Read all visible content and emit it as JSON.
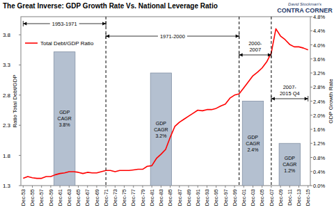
{
  "chart_data": {
    "type": "line",
    "title": "The Great Inverse: GDP Growth Rate Vs. National Leverage Ratio",
    "logo": [
      "David Stockman's",
      "CONTRA CORNER"
    ],
    "ylabel": "Ratio Total Debt/GDP",
    "y2label": "GDP Growth Rate",
    "categories": [
      "Dec-53",
      null,
      "Dec-55",
      null,
      "Dec-57",
      null,
      "Dec-59",
      null,
      "Dec-61",
      null,
      "Dec-63",
      null,
      "Dec-65",
      null,
      "Dec-67",
      null,
      "Dec-69",
      null,
      "Dec-71",
      null,
      "Dec-73",
      null,
      "Dec-75",
      null,
      "Dec-77",
      null,
      "Dec-79",
      null,
      "Dec-81",
      null,
      "Dec-83",
      null,
      "Dec-85",
      null,
      "Dec-87",
      null,
      "Dec-89",
      null,
      "Dec-91",
      null,
      "Dec-93",
      null,
      "Dec-95",
      null,
      "Dec-97",
      null,
      "Dec-99",
      null,
      "Dec-01",
      null,
      "Dec-03",
      null,
      "Dec-05",
      null,
      "Dec-07",
      null,
      "Dec-09",
      null,
      "Dec-11",
      null,
      "Dec-13",
      null,
      "Dec-15"
    ],
    "series": [
      {
        "name": "Total Debt/GDP Ratio",
        "type": "line",
        "color": "#ff0000",
        "values": [
          1.42,
          1.45,
          1.43,
          1.42,
          1.42,
          1.45,
          1.45,
          1.48,
          1.5,
          1.51,
          1.53,
          1.53,
          1.52,
          1.5,
          1.52,
          1.51,
          1.51,
          1.53,
          1.55,
          1.55,
          1.53,
          1.55,
          1.55,
          1.55,
          1.56,
          1.57,
          1.57,
          1.62,
          1.63,
          1.75,
          1.82,
          1.9,
          2.1,
          2.28,
          2.35,
          2.4,
          2.45,
          2.5,
          2.55,
          2.54,
          2.56,
          2.56,
          2.58,
          2.62,
          2.65,
          2.75,
          2.8,
          2.82,
          2.92,
          3.02,
          3.12,
          3.18,
          3.25,
          3.35,
          3.5,
          3.9,
          3.78,
          3.72,
          3.64,
          3.6,
          3.6,
          3.58,
          3.55
        ]
      },
      {
        "name": "GDP CAGR",
        "type": "bar",
        "axis": "y2",
        "color": "#b4c0d0",
        "values": [
          null,
          null,
          null,
          null,
          null,
          null,
          null,
          null,
          null,
          3.8,
          null,
          null,
          null,
          null,
          null,
          null,
          null,
          null,
          null,
          null,
          null,
          null,
          null,
          null,
          null,
          null,
          null,
          null,
          null,
          null,
          3.2,
          null,
          null,
          null,
          null,
          null,
          null,
          null,
          null,
          null,
          null,
          null,
          null,
          null,
          null,
          null,
          null,
          null,
          null,
          null,
          2.4,
          null,
          null,
          null,
          null,
          null,
          null,
          null,
          1.2,
          null,
          null,
          null,
          null
        ],
        "value_labels": [
          null,
          null,
          null,
          null,
          null,
          null,
          null,
          null,
          null,
          "3.8%",
          null,
          null,
          null,
          null,
          null,
          null,
          null,
          null,
          null,
          null,
          null,
          null,
          null,
          null,
          null,
          null,
          null,
          null,
          null,
          null,
          "3.2%",
          null,
          null,
          null,
          null,
          null,
          null,
          null,
          null,
          null,
          null,
          null,
          null,
          null,
          null,
          null,
          null,
          null,
          null,
          null,
          "2.4%",
          null,
          null,
          null,
          null,
          null,
          null,
          null,
          "1.2%",
          null,
          null,
          null,
          null
        ]
      }
    ],
    "ylim": [
      1.3,
      4.1
    ],
    "yticks": [
      1.3,
      1.8,
      2.3,
      2.8,
      3.3,
      3.8
    ],
    "y2lim": [
      0,
      4.8
    ],
    "y2ticks": [
      {
        "value": 0,
        "label": "0.0%"
      },
      {
        "value": 0.4,
        "label": "0.4%"
      },
      {
        "value": 0.8,
        "label": "0.8%"
      },
      {
        "value": 1.2,
        "label": "1.2%"
      },
      {
        "value": 1.6,
        "label": "1.6%"
      },
      {
        "value": 2.0,
        "label": "2.0%"
      },
      {
        "value": 2.4,
        "label": "2.4%"
      },
      {
        "value": 2.8,
        "label": "2.8%"
      },
      {
        "value": 3.2,
        "label": "3.2%"
      },
      {
        "value": 3.6,
        "label": "3.6%"
      },
      {
        "value": 4.0,
        "label": "4.0%"
      },
      {
        "value": 4.4,
        "label": "4.4%"
      },
      {
        "value": 4.8,
        "label": "4.8%"
      }
    ],
    "annotations": [
      {
        "text": "1953-1971",
        "span": [
          0,
          18
        ]
      },
      {
        "text": "1971-2000",
        "span": [
          18,
          47
        ]
      },
      {
        "text": "2000-2007",
        "span": [
          47,
          54
        ]
      },
      {
        "text": "2007-2015 Q4",
        "span": [
          54,
          62
        ]
      }
    ],
    "legend": "top-left",
    "grid": false,
    "data_labels": true
  }
}
